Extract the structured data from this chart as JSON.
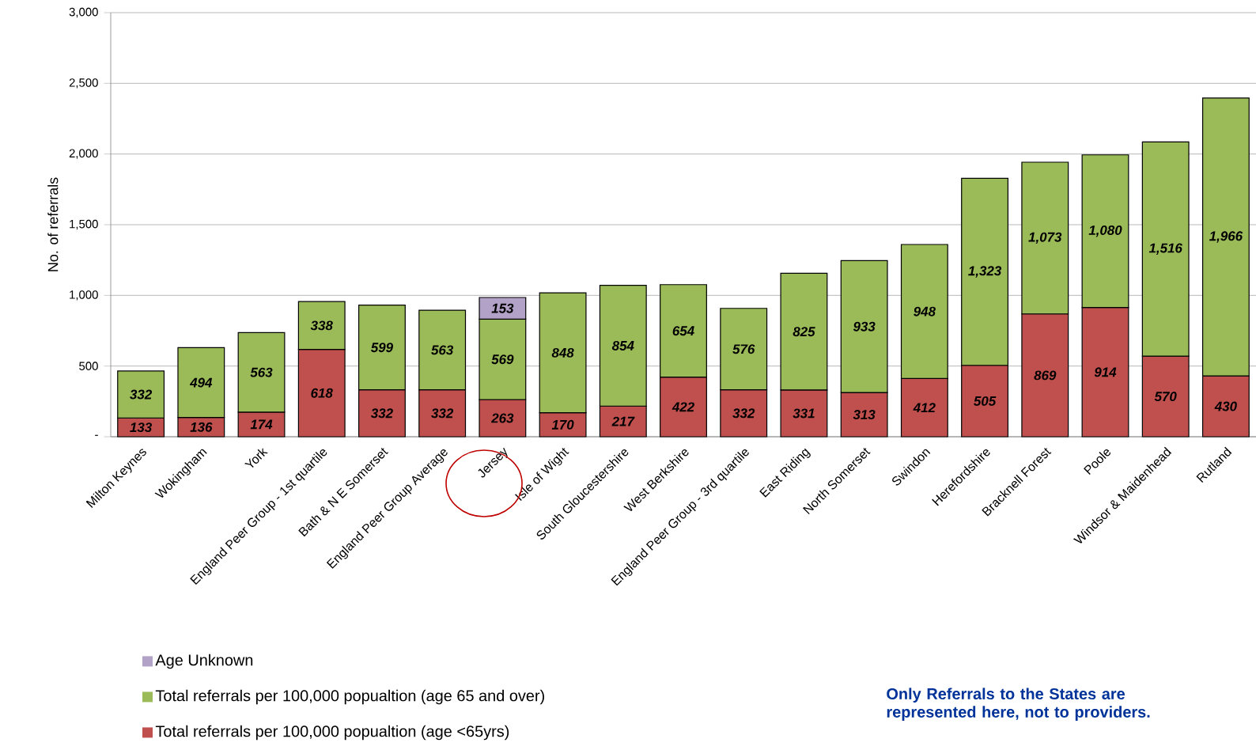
{
  "chart_data": {
    "type": "bar",
    "stacked": true,
    "ylabel": "No. of referrals",
    "categories": [
      "Milton Keynes",
      "Wokingham",
      "York",
      "England Peer Group - 1st quartile",
      "Bath & N E Somerset",
      "England Peer Group Average",
      "Jersey",
      "Isle of Wight",
      "South Gloucestershire",
      "West Berkshire",
      "England Peer Group - 3rd quartile",
      "East Riding",
      "North Somerset",
      "Swindon",
      "Herefordshire",
      "Bracknell Forest",
      "Poole",
      "Windsor & Maidenhead",
      "Rutland"
    ],
    "series": [
      {
        "name": "Total referrals per 100,000 popualtion (age <65yrs)",
        "color": "#c0504d",
        "values": [
          133,
          136,
          174,
          618,
          332,
          332,
          263,
          170,
          217,
          422,
          332,
          331,
          313,
          412,
          505,
          869,
          914,
          570,
          430
        ],
        "value_labels": [
          "133",
          "136",
          "174",
          "618",
          "332",
          "332",
          "263",
          "170",
          "217",
          "422",
          "332",
          "331",
          "313",
          "412",
          "505",
          "869",
          "914",
          "570",
          "430"
        ]
      },
      {
        "name": "Total referrals per 100,000 popualtion (age 65 and over)",
        "color": "#9bbb59",
        "values": [
          332,
          494,
          563,
          338,
          599,
          563,
          569,
          848,
          854,
          654,
          576,
          825,
          933,
          948,
          1323,
          1073,
          1080,
          1516,
          1966
        ],
        "value_labels": [
          "332",
          "494",
          "563",
          "338",
          "599",
          "563",
          "569",
          "848",
          "854",
          "654",
          "576",
          "825",
          "933",
          "948",
          "1,323",
          "1,073",
          "1,080",
          "1,516",
          "1,966"
        ]
      },
      {
        "name": "Age Unknown",
        "color": "#b3a2c7",
        "values": [
          null,
          null,
          null,
          null,
          null,
          null,
          153,
          null,
          null,
          null,
          null,
          null,
          null,
          null,
          null,
          null,
          null,
          null,
          null
        ],
        "value_labels": [
          null,
          null,
          null,
          null,
          null,
          null,
          "153",
          null,
          null,
          null,
          null,
          null,
          null,
          null,
          null,
          null,
          null,
          null,
          null
        ]
      }
    ],
    "ylim": [
      0,
      3000
    ],
    "yticks": [
      {
        "value": 0,
        "label": "-"
      },
      500,
      {
        "value": 1000,
        "label": "1,000"
      },
      {
        "value": 1500,
        "label": "1,500"
      },
      {
        "value": 2000,
        "label": "2,000"
      },
      {
        "value": 2500,
        "label": "2,500"
      },
      {
        "value": 3000,
        "label": "3,000"
      }
    ],
    "grid": "y",
    "legend": "bottom left",
    "annotations": [
      "Only Referrals to the States are represented here, not to providers."
    ]
  }
}
